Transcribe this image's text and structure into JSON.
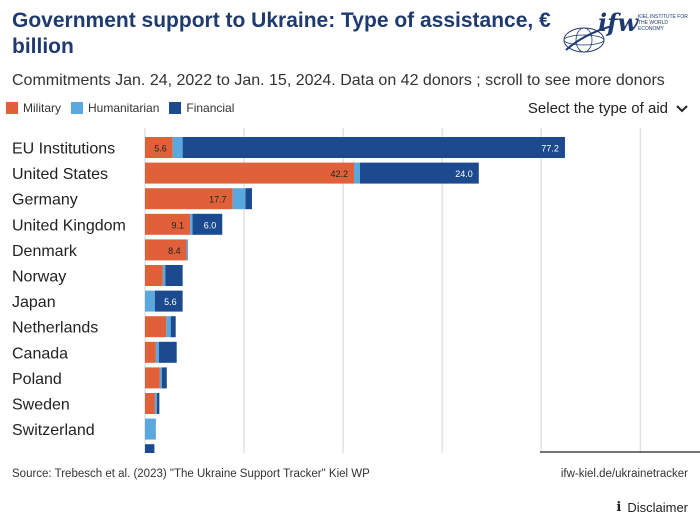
{
  "header": {
    "title": "Government support to Ukraine:  Type of assistance, € billion",
    "subtitle": "Commitments Jan. 24, 2022 to Jan. 15, 2024. Data on 42 donors ; scroll to see more donors",
    "logo_text": "ifw",
    "logo_sub": "KIEL INSTITUTE FOR THE WORLD ECONOMY"
  },
  "controls": {
    "select_label": "Select the type of aid",
    "select_icon": "chevron-down-icon"
  },
  "colors": {
    "military": "#e0603a",
    "humanitarian": "#5aa8de",
    "financial": "#1b4a8e"
  },
  "chart_data": {
    "type": "bar",
    "orientation": "horizontal",
    "stacked": true,
    "categories": [
      "EU Institutions",
      "United States",
      "Germany",
      "United Kingdom",
      "Denmark",
      "Norway",
      "Japan",
      "Netherlands",
      "Canada",
      "Poland",
      "Sweden",
      "Switzerland",
      ""
    ],
    "series": [
      {
        "name": "Military",
        "color": "#e0603a",
        "values": [
          5.6,
          42.2,
          17.7,
          9.1,
          8.4,
          3.6,
          0.0,
          4.3,
          2.2,
          3.0,
          2.0,
          0.0,
          0.0
        ]
      },
      {
        "name": "Humanitarian",
        "color": "#5aa8de",
        "values": [
          2.0,
          1.2,
          2.6,
          0.5,
          0.3,
          0.5,
          2.0,
          0.9,
          0.6,
          0.4,
          0.4,
          2.2,
          0.0
        ]
      },
      {
        "name": "Financial",
        "color": "#1b4a8e",
        "values": [
          77.2,
          24.0,
          1.3,
          6.0,
          0.0,
          3.5,
          5.6,
          1.0,
          3.6,
          1.0,
          0.5,
          0.0,
          1.9
        ]
      }
    ],
    "data_labels": [
      {
        "category": "EU Institutions",
        "series": "Military",
        "text": "5.6"
      },
      {
        "category": "EU Institutions",
        "series": "Financial",
        "text": "77.2"
      },
      {
        "category": "United States",
        "series": "Military",
        "text": "42.2"
      },
      {
        "category": "United States",
        "series": "Financial",
        "text": "24.0"
      },
      {
        "category": "Germany",
        "series": "Military",
        "text": "17.7"
      },
      {
        "category": "United Kingdom",
        "series": "Military",
        "text": "9.1"
      },
      {
        "category": "United Kingdom",
        "series": "Financial",
        "text": "6.0"
      },
      {
        "category": "Denmark",
        "series": "Military",
        "text": "8.4"
      },
      {
        "category": "Japan",
        "series": "Financial",
        "text": "5.6"
      }
    ],
    "xlim": [
      0,
      105
    ],
    "gridlines_x": [
      0,
      20,
      40,
      60,
      80,
      100
    ],
    "grid": true,
    "legend_position": "top-left"
  },
  "footer": {
    "source": "Source: Trebesch et al. (2023) \"The Ukraine Support Tracker\" Kiel WP",
    "url": "ifw-kiel.de/ukrainetracker",
    "disclaimer": "Disclaimer",
    "disclaimer_icon": "info-icon"
  }
}
